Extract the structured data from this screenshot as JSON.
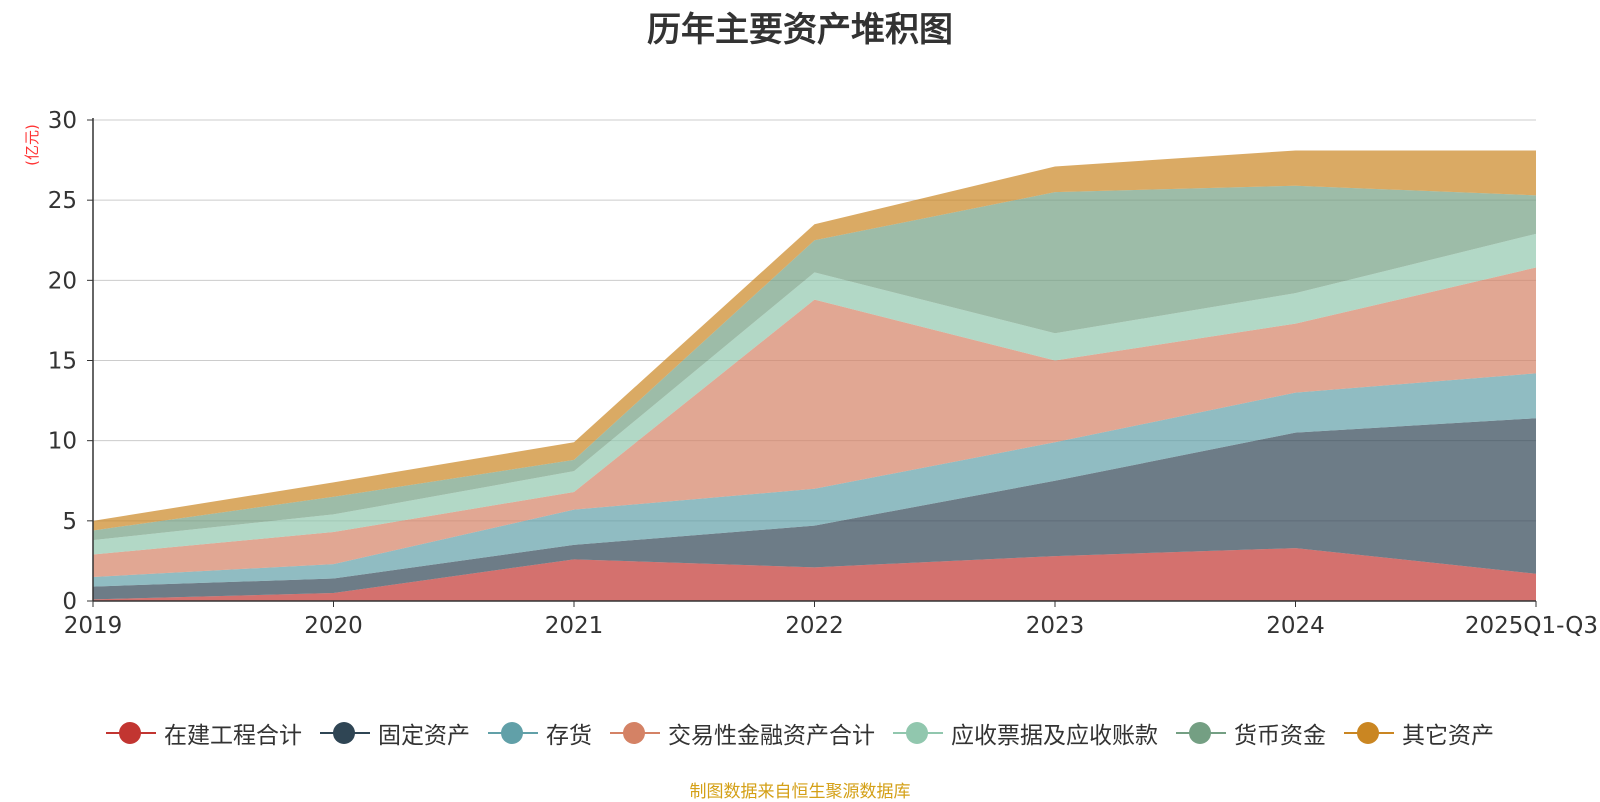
{
  "chart_data": {
    "type": "area",
    "stacked": true,
    "title": "历年主要资产堆积图",
    "unit_label": "(亿元)",
    "categories": [
      "2019",
      "2020",
      "2021",
      "2022",
      "2023",
      "2024",
      "2025Q1-Q3"
    ],
    "ylim": [
      0,
      30
    ],
    "yticks": [
      0,
      5,
      10,
      15,
      20,
      25,
      30
    ],
    "grid": true,
    "legend_position": "bottom",
    "series": [
      {
        "name": "在建工程合计",
        "color": "#c23531",
        "values": [
          0.1,
          0.5,
          2.6,
          2.1,
          2.8,
          3.3,
          1.7
        ]
      },
      {
        "name": "固定资产",
        "color": "#2f4554",
        "values": [
          0.8,
          0.9,
          0.9,
          2.6,
          4.7,
          7.2,
          9.7
        ]
      },
      {
        "name": "存货",
        "color": "#61a0a8",
        "values": [
          0.6,
          0.9,
          2.2,
          2.3,
          2.4,
          2.5,
          2.8
        ]
      },
      {
        "name": "交易性金融资产合计",
        "color": "#d48265",
        "values": [
          1.4,
          2.0,
          1.1,
          11.8,
          5.1,
          4.3,
          6.6
        ]
      },
      {
        "name": "应收票据及应收账款",
        "color": "#91c7ae",
        "values": [
          0.9,
          1.1,
          1.3,
          1.7,
          1.7,
          1.9,
          2.1
        ]
      },
      {
        "name": "货币资金",
        "color": "#749f83",
        "values": [
          0.6,
          1.1,
          0.7,
          2.0,
          8.8,
          6.7,
          2.4
        ]
      },
      {
        "name": "其它资产",
        "color": "#ca8622",
        "values": [
          0.6,
          0.9,
          1.1,
          1.0,
          1.6,
          2.2,
          2.8
        ]
      }
    ]
  },
  "source_note": "制图数据来自恒生聚源数据库"
}
